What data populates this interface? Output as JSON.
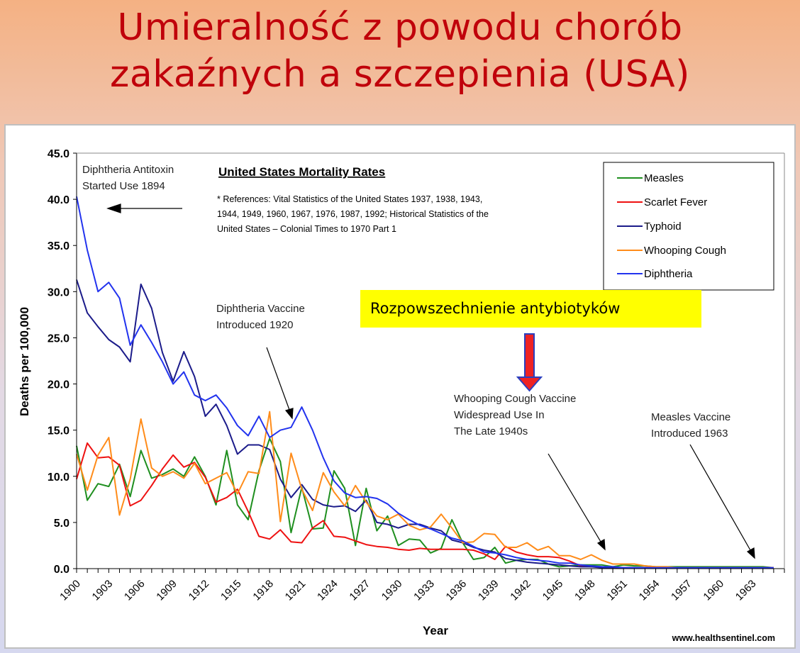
{
  "slide": {
    "title_line1": "Umieralność z powodu chorób",
    "title_line2": "zakaźnych a szczepienia (USA)",
    "highlight_text": "Rozpowszechnienie antybiotyków"
  },
  "chart_data": {
    "type": "line",
    "title": "United States Mortality Rates",
    "references": [
      "* References: Vital Statistics of the United States 1937, 1938, 1943,",
      "1944, 1949, 1960, 1967, 1976, 1987, 1992; Historical Statistics of the",
      "United States – Colonial Times to 1970 Part 1"
    ],
    "xlabel": "Year",
    "ylabel": "Deaths per 100,000",
    "xlim": [
      1900,
      1966
    ],
    "ylim": [
      0,
      45
    ],
    "y_ticks": [
      "0.0",
      "5.0",
      "10.0",
      "15.0",
      "20.0",
      "25.0",
      "30.0",
      "35.0",
      "40.0",
      "45.0"
    ],
    "x_tick_labels": [
      "1900",
      "1903",
      "1906",
      "1909",
      "1912",
      "1915",
      "1918",
      "1921",
      "1924",
      "1927",
      "1930",
      "1933",
      "1936",
      "1939",
      "1942",
      "1945",
      "1948",
      "1951",
      "1954",
      "1957",
      "1960",
      "1963"
    ],
    "grid": false,
    "legend_position": "top-right",
    "source": "www.healthsentinel.com",
    "series": [
      {
        "name": "Measles",
        "color": "#1f8f1f",
        "values": [
          13.3,
          7.4,
          9.2,
          8.9,
          11.3,
          7.8,
          12.8,
          9.8,
          10.2,
          10.8,
          10.0,
          12.1,
          10.0,
          6.9,
          12.8,
          6.9,
          5.3,
          10.6,
          14.1,
          11.6,
          3.9,
          8.8,
          4.3,
          4.4,
          10.6,
          8.7,
          2.5,
          8.7,
          4.1,
          5.7,
          2.5,
          3.2,
          3.1,
          1.7,
          2.2,
          5.3,
          2.8,
          1.0,
          1.2,
          2.3,
          0.6,
          0.9,
          1.0,
          1.0,
          0.5,
          0.2,
          0.3,
          0.4,
          0.4,
          0.4,
          0.2,
          0.4,
          0.3,
          0.3,
          0.2,
          0.2,
          0.2,
          0.2,
          0.2,
          0.2,
          0.2,
          0.2,
          0.2,
          0.2,
          0.2,
          0.1
        ]
      },
      {
        "name": "Scarlet Fever",
        "color": "#ee1111",
        "values": [
          9.7,
          13.6,
          12.0,
          12.1,
          11.2,
          6.8,
          7.4,
          9.0,
          10.8,
          12.3,
          11.0,
          11.5,
          9.9,
          7.2,
          7.7,
          8.6,
          6.2,
          3.5,
          3.2,
          4.2,
          2.9,
          2.8,
          4.4,
          5.2,
          3.5,
          3.4,
          3.0,
          2.6,
          2.4,
          2.3,
          2.1,
          2.0,
          2.2,
          2.1,
          2.1,
          2.1,
          2.1,
          2.0,
          1.6,
          1.0,
          2.4,
          1.8,
          1.5,
          1.3,
          1.3,
          1.2,
          0.8,
          0.3,
          0.2,
          0.2,
          0.1,
          0.1,
          0.1,
          0.1,
          0.1,
          0.1,
          0.1,
          0.1,
          0.1,
          0.1,
          0.1,
          0.1,
          0.1,
          0.1,
          0.1,
          0.1
        ]
      },
      {
        "name": "Typhoid",
        "color": "#1b1b8a",
        "values": [
          31.3,
          27.7,
          26.2,
          24.8,
          24.0,
          22.4,
          30.8,
          28.2,
          23.4,
          20.3,
          23.5,
          20.8,
          16.5,
          17.8,
          15.5,
          12.4,
          13.4,
          13.4,
          12.9,
          9.7,
          7.7,
          9.1,
          7.5,
          6.9,
          6.7,
          6.8,
          6.2,
          7.4,
          5.0,
          4.8,
          4.4,
          4.8,
          4.8,
          4.4,
          4.1,
          3.1,
          2.8,
          2.3,
          2.0,
          1.8,
          1.1,
          0.9,
          0.7,
          0.6,
          0.5,
          0.4,
          0.3,
          0.2,
          0.2,
          0.1,
          0.1,
          0.1,
          0.1,
          0.1,
          0.1,
          0.1,
          0.1,
          0.1,
          0.1,
          0.1,
          0.1,
          0.1,
          0.1,
          0.1,
          0.1,
          0.1
        ]
      },
      {
        "name": "Whooping Cough",
        "color": "#ff8c1a",
        "values": [
          12.4,
          8.5,
          12.3,
          14.2,
          5.8,
          9.7,
          16.2,
          10.9,
          10.0,
          10.5,
          9.8,
          11.4,
          9.2,
          9.8,
          10.4,
          8.1,
          10.5,
          10.3,
          17.0,
          5.1,
          12.5,
          8.6,
          6.3,
          10.4,
          8.3,
          6.8,
          9.0,
          7.2,
          5.7,
          5.3,
          5.9,
          4.7,
          4.2,
          4.5,
          5.9,
          4.4,
          2.8,
          2.9,
          3.8,
          3.7,
          2.3,
          2.3,
          2.8,
          2.0,
          2.4,
          1.4,
          1.4,
          1.0,
          1.5,
          0.9,
          0.5,
          0.5,
          0.5,
          0.3,
          0.2,
          0.2,
          0.1,
          0.1,
          0.1,
          0.1,
          0.1,
          0.1,
          0.1,
          0.1,
          0.1,
          0.1
        ]
      },
      {
        "name": "Diphtheria",
        "color": "#2233ee",
        "values": [
          40.3,
          34.5,
          30.0,
          31.0,
          29.3,
          24.2,
          26.4,
          24.5,
          22.4,
          20.0,
          21.3,
          18.8,
          18.2,
          18.8,
          17.4,
          15.5,
          14.4,
          16.5,
          14.2,
          15.0,
          15.3,
          17.5,
          15.0,
          12.0,
          9.5,
          8.2,
          7.7,
          7.8,
          7.6,
          7.0,
          6.0,
          5.3,
          4.7,
          4.3,
          3.8,
          3.3,
          3.0,
          2.4,
          1.8,
          1.7,
          1.5,
          1.2,
          1.0,
          0.9,
          0.8,
          0.6,
          0.6,
          0.4,
          0.3,
          0.2,
          0.2,
          0.1,
          0.1,
          0.1,
          0.1,
          0.1,
          0.1,
          0.1,
          0.1,
          0.1,
          0.1,
          0.1,
          0.1,
          0.1,
          0.1,
          0.1
        ]
      }
    ],
    "annotations": [
      {
        "lines": [
          "Diphtheria Antitoxin",
          "Started Use 1894"
        ]
      },
      {
        "lines": [
          "Diphtheria Vaccine",
          "Introduced 1920"
        ]
      },
      {
        "lines": [
          "Whooping Cough Vaccine",
          "Widespread Use In",
          "The Late 1940s"
        ]
      },
      {
        "lines": [
          "Measles Vaccine",
          "Introduced 1963"
        ]
      }
    ]
  }
}
